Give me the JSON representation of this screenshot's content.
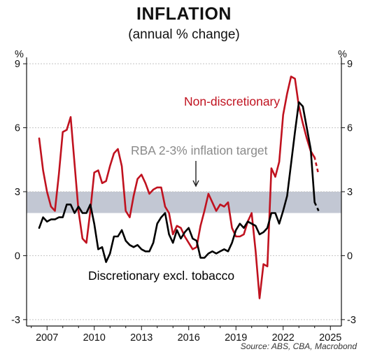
{
  "chart_data": {
    "type": "line",
    "title": "INFLATION",
    "subtitle": "(annual % change)",
    "ylabel_left": "%",
    "ylabel_right": "%",
    "ylim": [
      -3.3,
      9.3
    ],
    "yticks": [
      -3,
      0,
      3,
      6,
      9
    ],
    "ytick_labels": [
      "-3",
      "0",
      "3",
      "6",
      "9"
    ],
    "xlim": [
      2005.7,
      2025.7
    ],
    "xticks": [
      2007,
      2010,
      2013,
      2016,
      2019,
      2022,
      2025
    ],
    "xtick_labels": [
      "2007",
      "2010",
      "2013",
      "2016",
      "2019",
      "2022",
      "2025"
    ],
    "grid": true,
    "target_band": {
      "low": 2,
      "high": 3,
      "color": "#c2c7d3"
    },
    "annotations": {
      "target_label": "RBA 2-3% inflation target",
      "nondisc_label": "Non-discretionary",
      "disc_label": "Discretionary excl. tobacco",
      "source": "Source: ABS, CBA, Macrobond"
    },
    "colors": {
      "nondisc": "#c0121f",
      "disc": "#000000",
      "target_text": "#8a8a8a"
    },
    "series": [
      {
        "name": "Non-discretionary",
        "x": [
          2006.5,
          2006.75,
          2007.0,
          2007.25,
          2007.5,
          2007.75,
          2008.0,
          2008.25,
          2008.5,
          2008.75,
          2009.0,
          2009.25,
          2009.5,
          2009.75,
          2010.0,
          2010.25,
          2010.5,
          2010.75,
          2011.0,
          2011.25,
          2011.5,
          2011.75,
          2012.0,
          2012.25,
          2012.5,
          2012.75,
          2013.0,
          2013.25,
          2013.5,
          2013.75,
          2014.0,
          2014.25,
          2014.5,
          2014.75,
          2015.0,
          2015.25,
          2015.5,
          2015.75,
          2016.0,
          2016.25,
          2016.5,
          2016.75,
          2017.0,
          2017.25,
          2017.5,
          2017.75,
          2018.0,
          2018.25,
          2018.5,
          2018.75,
          2019.0,
          2019.25,
          2019.5,
          2019.75,
          2020.0,
          2020.25,
          2020.5,
          2020.75,
          2021.0,
          2021.25,
          2021.5,
          2021.75,
          2022.0,
          2022.25,
          2022.5,
          2022.75,
          2023.0,
          2023.25,
          2023.5,
          2023.75,
          2024.0
        ],
        "values": [
          5.5,
          4.0,
          3.0,
          2.3,
          2.1,
          3.8,
          5.8,
          5.9,
          6.5,
          4.3,
          2.1,
          0.8,
          0.6,
          2.1,
          3.9,
          4.0,
          3.4,
          3.5,
          4.2,
          4.8,
          5.0,
          4.2,
          2.1,
          1.8,
          2.8,
          3.6,
          3.8,
          3.4,
          2.9,
          3.1,
          3.2,
          3.2,
          2.3,
          2.0,
          1.0,
          1.4,
          1.3,
          0.9,
          0.6,
          0.3,
          0.4,
          1.4,
          2.1,
          2.9,
          2.5,
          2.1,
          2.4,
          2.3,
          2.5,
          1.3,
          0.9,
          0.9,
          1.0,
          1.6,
          2.0,
          0.2,
          -2.0,
          -0.4,
          -0.5,
          4.1,
          3.7,
          4.4,
          6.6,
          7.6,
          8.4,
          8.3,
          7.0,
          6.2,
          5.5,
          4.9,
          4.6
        ],
        "projection": {
          "x": [
            2023.75,
            2024.0,
            2024.25
          ],
          "values": [
            4.9,
            4.6,
            3.8
          ]
        }
      },
      {
        "name": "Discretionary excl. tobacco",
        "x": [
          2006.5,
          2006.75,
          2007.0,
          2007.25,
          2007.5,
          2007.75,
          2008.0,
          2008.25,
          2008.5,
          2008.75,
          2009.0,
          2009.25,
          2009.5,
          2009.75,
          2010.0,
          2010.25,
          2010.5,
          2010.75,
          2011.0,
          2011.25,
          2011.5,
          2011.75,
          2012.0,
          2012.25,
          2012.5,
          2012.75,
          2013.0,
          2013.25,
          2013.5,
          2013.75,
          2014.0,
          2014.25,
          2014.5,
          2014.75,
          2015.0,
          2015.25,
          2015.5,
          2015.75,
          2016.0,
          2016.25,
          2016.5,
          2016.75,
          2017.0,
          2017.25,
          2017.5,
          2017.75,
          2018.0,
          2018.25,
          2018.5,
          2018.75,
          2019.0,
          2019.25,
          2019.5,
          2019.75,
          2020.0,
          2020.25,
          2020.5,
          2020.75,
          2021.0,
          2021.25,
          2021.5,
          2021.75,
          2022.0,
          2022.25,
          2022.5,
          2022.75,
          2023.0,
          2023.25,
          2023.5,
          2023.75,
          2024.0
        ],
        "values": [
          1.3,
          1.8,
          1.6,
          1.7,
          1.7,
          1.8,
          1.8,
          2.4,
          2.4,
          2.0,
          2.3,
          2.0,
          2.0,
          2.4,
          1.5,
          0.3,
          0.4,
          -0.3,
          0.1,
          0.9,
          0.9,
          1.2,
          0.7,
          0.5,
          0.4,
          0.5,
          0.3,
          0.2,
          0.2,
          0.6,
          1.5,
          1.8,
          2.0,
          1.0,
          0.6,
          1.2,
          0.8,
          1.1,
          1.3,
          0.8,
          0.7,
          -0.1,
          -0.1,
          0.1,
          0.2,
          0.1,
          0.2,
          0.3,
          0.2,
          0.6,
          1.2,
          1.5,
          1.3,
          1.6,
          1.5,
          1.4,
          1.0,
          1.1,
          1.3,
          2.0,
          2.0,
          1.5,
          2.1,
          2.8,
          4.3,
          5.8,
          7.2,
          7.0,
          6.0,
          5.0,
          2.5
        ],
        "projection": {
          "x": [
            2024.0,
            2024.25
          ],
          "values": [
            2.5,
            2.1
          ]
        }
      }
    ]
  }
}
